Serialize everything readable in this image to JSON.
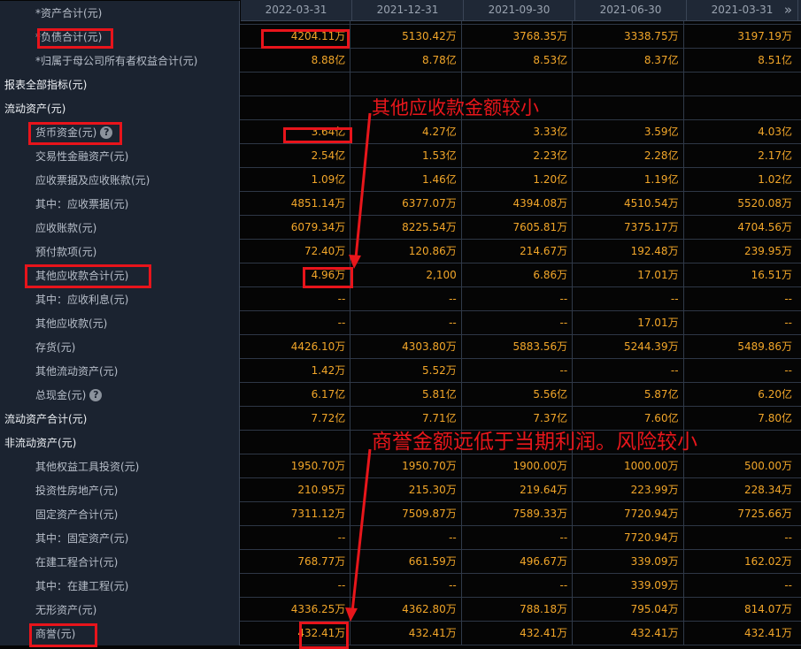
{
  "columns": [
    "2022-03-31",
    "2021-12-31",
    "2021-09-30",
    "2021-06-30",
    "2021-03-31"
  ],
  "more_icon": "double-chevron-right-icon",
  "colors": {
    "value": "#f2a629",
    "annotation": "#e8161b",
    "panel": "#1b2330"
  },
  "rows": [
    {
      "label": "*资产合计(元)",
      "section": false,
      "values": [
        "",
        "",
        "",
        "",
        ""
      ]
    },
    {
      "label": "*负债合计(元)",
      "section": false,
      "values": [
        "4204.11万",
        "5130.42万",
        "3768.35万",
        "3338.75万",
        "3197.19万"
      ]
    },
    {
      "label": "*归属于母公司所有者权益合计(元)",
      "section": false,
      "values": [
        "8.88亿",
        "8.78亿",
        "8.53亿",
        "8.37亿",
        "8.51亿"
      ]
    },
    {
      "label": "报表全部指标(元)",
      "section": true,
      "values": [
        "",
        "",
        "",
        "",
        ""
      ]
    },
    {
      "label": "流动资产(元)",
      "section": true,
      "values": [
        "",
        "",
        "",
        "",
        ""
      ]
    },
    {
      "label": "货币资金(元)",
      "section": false,
      "help": true,
      "values": [
        "3.64亿",
        "4.27亿",
        "3.33亿",
        "3.59亿",
        "4.03亿"
      ]
    },
    {
      "label": "交易性金融资产(元)",
      "section": false,
      "values": [
        "2.54亿",
        "1.53亿",
        "2.23亿",
        "2.28亿",
        "2.17亿"
      ]
    },
    {
      "label": "应收票据及应收账款(元)",
      "section": false,
      "values": [
        "1.09亿",
        "1.46亿",
        "1.20亿",
        "1.19亿",
        "1.02亿"
      ]
    },
    {
      "label": "其中：应收票据(元)",
      "section": false,
      "values": [
        "4851.14万",
        "6377.07万",
        "4394.08万",
        "4510.54万",
        "5520.08万"
      ]
    },
    {
      "label": "应收账款(元)",
      "section": false,
      "values": [
        "6079.34万",
        "8225.54万",
        "7605.81万",
        "7375.17万",
        "4704.56万"
      ]
    },
    {
      "label": "预付款项(元)",
      "section": false,
      "values": [
        "72.40万",
        "120.86万",
        "214.67万",
        "192.48万",
        "239.95万"
      ]
    },
    {
      "label": "其他应收款合计(元)",
      "section": false,
      "values": [
        "4.96万",
        "2,100",
        "6.86万",
        "17.01万",
        "16.51万"
      ]
    },
    {
      "label": "其中：应收利息(元)",
      "section": false,
      "values": [
        "--",
        "--",
        "--",
        "--",
        "--"
      ]
    },
    {
      "label": "其他应收款(元)",
      "section": false,
      "values": [
        "--",
        "--",
        "--",
        "17.01万",
        "--"
      ]
    },
    {
      "label": "存货(元)",
      "section": false,
      "values": [
        "4426.10万",
        "4303.80万",
        "5883.56万",
        "5244.39万",
        "5489.86万"
      ]
    },
    {
      "label": "其他流动资产(元)",
      "section": false,
      "values": [
        "1.42万",
        "5.52万",
        "--",
        "--",
        "--"
      ]
    },
    {
      "label": "总现金(元)",
      "section": false,
      "help": true,
      "values": [
        "6.17亿",
        "5.81亿",
        "5.56亿",
        "5.87亿",
        "6.20亿"
      ]
    },
    {
      "label": "流动资产合计(元)",
      "section": true,
      "values": [
        "7.72亿",
        "7.71亿",
        "7.37亿",
        "7.60亿",
        "7.80亿"
      ]
    },
    {
      "label": "非流动资产(元)",
      "section": true,
      "values": [
        "",
        "",
        "",
        "",
        ""
      ]
    },
    {
      "label": "其他权益工具投资(元)",
      "section": false,
      "values": [
        "1950.70万",
        "1950.70万",
        "1900.00万",
        "1000.00万",
        "500.00万"
      ]
    },
    {
      "label": "投资性房地产(元)",
      "section": false,
      "values": [
        "210.95万",
        "215.30万",
        "219.64万",
        "223.99万",
        "228.34万"
      ]
    },
    {
      "label": "固定资产合计(元)",
      "section": false,
      "values": [
        "7311.12万",
        "7509.87万",
        "7589.33万",
        "7720.94万",
        "7725.66万"
      ]
    },
    {
      "label": "其中：固定资产(元)",
      "section": false,
      "values": [
        "--",
        "--",
        "--",
        "7720.94万",
        "--"
      ]
    },
    {
      "label": "在建工程合计(元)",
      "section": false,
      "values": [
        "768.77万",
        "661.59万",
        "496.67万",
        "339.09万",
        "162.02万"
      ]
    },
    {
      "label": "其中：在建工程(元)",
      "section": false,
      "values": [
        "--",
        "--",
        "--",
        "339.09万",
        "--"
      ]
    },
    {
      "label": "无形资产(元)",
      "section": false,
      "values": [
        "4336.25万",
        "4362.80万",
        "788.18万",
        "795.04万",
        "814.07万"
      ]
    },
    {
      "label": "商誉(元)",
      "section": false,
      "values": [
        "432.41万",
        "432.41万",
        "432.41万",
        "432.41万",
        "432.41万"
      ]
    }
  ],
  "annotations": {
    "note1": "其他应收款金额较小",
    "note2": "商誉金额远低于当期利润。风险较小"
  }
}
